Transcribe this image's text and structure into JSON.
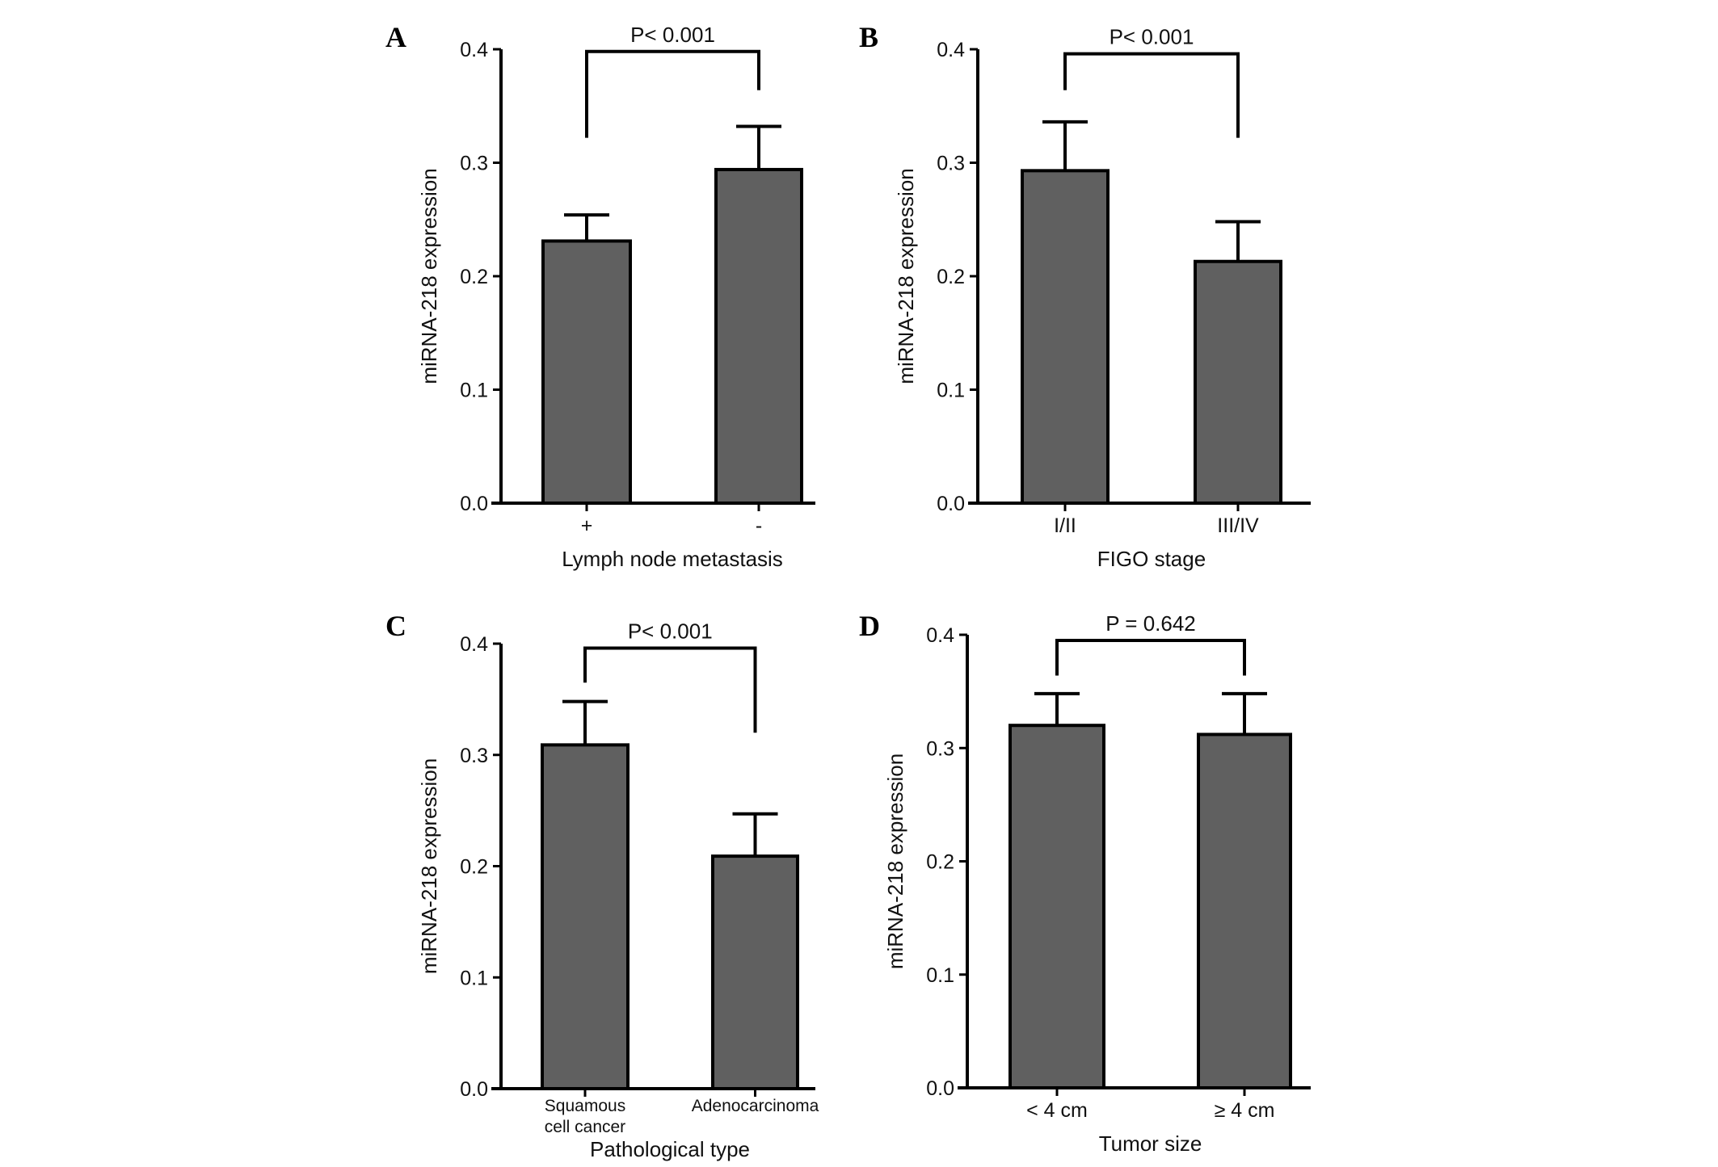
{
  "chart_data": [
    {
      "type": "bar",
      "panel": "A",
      "categories": [
        "+",
        "-"
      ],
      "values": [
        0.231,
        0.294
      ],
      "error_upper": [
        0.254,
        0.332
      ],
      "xlabel": "Lymph node metastasis",
      "ylabel": "miRNA-218 expression",
      "ylim": [
        0,
        0.4
      ],
      "yticks": [
        "0.0",
        "0.1",
        "0.2",
        "0.3",
        "0.4"
      ],
      "annotation": {
        "text": "P< 0.001",
        "bracket_y": 0.398,
        "left_end": 0.322,
        "right_end": 0.364
      }
    },
    {
      "type": "bar",
      "panel": "B",
      "categories": [
        "I/II",
        "III/IV"
      ],
      "values": [
        0.293,
        0.213
      ],
      "error_upper": [
        0.336,
        0.248
      ],
      "xlabel": "FIGO stage",
      "ylabel": "miRNA-218 expression",
      "ylim": [
        0,
        0.4
      ],
      "yticks": [
        "0.0",
        "0.1",
        "0.2",
        "0.3",
        "0.4"
      ],
      "annotation": {
        "text": "P< 0.001",
        "bracket_y": 0.396,
        "left_end": 0.364,
        "right_end": 0.322
      }
    },
    {
      "type": "bar",
      "panel": "C",
      "categories": [
        [
          "Squamous",
          "cell cancer"
        ],
        [
          "Adenocarcinoma"
        ]
      ],
      "values": [
        0.309,
        0.209
      ],
      "error_upper": [
        0.348,
        0.247
      ],
      "xlabel": "Pathological type",
      "ylabel": "miRNA-218 expression",
      "ylim": [
        0,
        0.4
      ],
      "yticks": [
        "0.0",
        "0.1",
        "0.2",
        "0.3",
        "0.4"
      ],
      "annotation": {
        "text": "P< 0.001",
        "bracket_y": 0.396,
        "left_end": 0.365,
        "right_end": 0.32
      }
    },
    {
      "type": "bar",
      "panel": "D",
      "categories": [
        "< 4 cm",
        "≥ 4 cm"
      ],
      "values": [
        0.32,
        0.312
      ],
      "error_upper": [
        0.348,
        0.348
      ],
      "xlabel": "Tumor size",
      "ylabel": "miRNA-218 expression",
      "ylim": [
        0,
        0.4
      ],
      "yticks": [
        "0.0",
        "0.1",
        "0.2",
        "0.3",
        "0.4"
      ],
      "annotation": {
        "text": "P = 0.642",
        "bracket_y": 0.395,
        "left_end": 0.364,
        "right_end": 0.364
      }
    }
  ],
  "colors": {
    "bar_fill": "#606060",
    "stroke": "#000000"
  }
}
